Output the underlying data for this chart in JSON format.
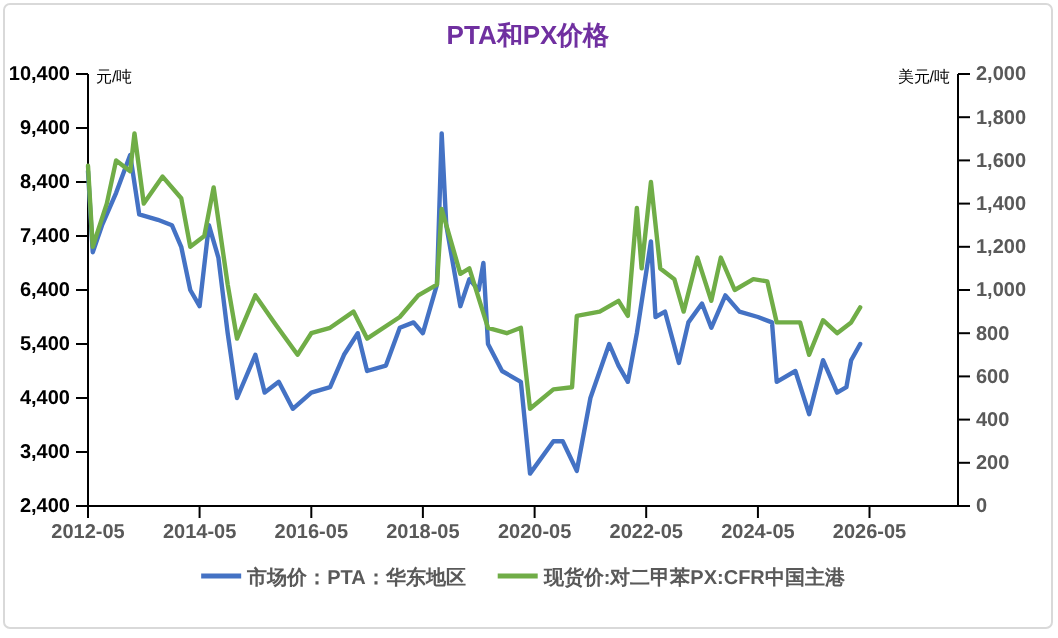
{
  "chart_data": {
    "type": "line",
    "title": "PTA和PX价格",
    "ylabel": "元/吨",
    "y2label": "美元/吨",
    "xlim": [
      "2012-05",
      "2027-12"
    ],
    "xticks": [
      "2012-05",
      "2014-05",
      "2016-05",
      "2018-05",
      "2020-05",
      "2022-05",
      "2024-05",
      "2026-05"
    ],
    "ylim": [
      2400,
      10400
    ],
    "yticks": [
      {
        "value": 2400,
        "label": "2,400"
      },
      {
        "value": 3400,
        "label": "3,400"
      },
      {
        "value": 4400,
        "label": "4,400"
      },
      {
        "value": 5400,
        "label": "5,400"
      },
      {
        "value": 6400,
        "label": "6,400"
      },
      {
        "value": 7400,
        "label": "7,400"
      },
      {
        "value": 8400,
        "label": "8,400"
      },
      {
        "value": 9400,
        "label": "9,400"
      },
      {
        "value": 10400,
        "label": "10,400"
      }
    ],
    "y2lim": [
      0,
      2000
    ],
    "y2ticks": [
      0,
      200,
      400,
      600,
      800,
      {
        "value": 1000,
        "label": "1,000"
      },
      {
        "value": 1200,
        "label": "1,200"
      },
      {
        "value": 1400,
        "label": "1,400"
      },
      {
        "value": 1600,
        "label": "1,600"
      },
      {
        "value": 1800,
        "label": "1,800"
      },
      {
        "value": 2000,
        "label": "2,000"
      }
    ],
    "grid": false,
    "legend": "bottom",
    "line_style": "solid",
    "marker": "none",
    "series": [
      {
        "name": "市场价：PTA：华东地区",
        "color": "#4472c4",
        "x": [
          "2012-05",
          "2012-06",
          "2012-08",
          "2012-11",
          "2013-02",
          "2013-04",
          "2013-08",
          "2013-11",
          "2014-01",
          "2014-03",
          "2014-05",
          "2014-07",
          "2014-09",
          "2014-11",
          "2015-01",
          "2015-05",
          "2015-07",
          "2015-10",
          "2016-01",
          "2016-05",
          "2016-09",
          "2016-12",
          "2017-03",
          "2017-05",
          "2017-09",
          "2017-12",
          "2018-03",
          "2018-05",
          "2018-08",
          "2018-09",
          "2018-10",
          "2019-01",
          "2019-03",
          "2019-05",
          "2019-06",
          "2019-07",
          "2019-10",
          "2020-02",
          "2020-04",
          "2020-09",
          "2020-11",
          "2021-02",
          "2021-05",
          "2021-09",
          "2021-11",
          "2022-01",
          "2022-03",
          "2022-06",
          "2022-07",
          "2022-09",
          "2022-12",
          "2023-02",
          "2023-05",
          "2023-07",
          "2023-10",
          "2024-01",
          "2024-05",
          "2024-08",
          "2024-09",
          "2025-01",
          "2025-04",
          "2025-07",
          "2025-10",
          "2025-12",
          "2026-01",
          "2026-03"
        ],
        "values": [
          8600,
          7100,
          7600,
          8200,
          8900,
          7800,
          7700,
          7600,
          7200,
          6400,
          6100,
          7600,
          7000,
          5600,
          4400,
          5200,
          4500,
          4700,
          4200,
          4500,
          4600,
          5200,
          5600,
          4900,
          5000,
          5700,
          5800,
          5600,
          6500,
          9300,
          7600,
          6100,
          6600,
          6400,
          6900,
          5400,
          4900,
          4700,
          3000,
          3600,
          3600,
          3050,
          4400,
          5400,
          5000,
          4700,
          5600,
          7300,
          5900,
          6000,
          5050,
          5800,
          6150,
          5700,
          6300,
          6000,
          5900,
          5800,
          4700,
          4900,
          4100,
          5100,
          4500,
          4600,
          5100,
          5400
        ]
      },
      {
        "name": "现货价:对二甲苯PX:CFR中国主港",
        "color": "#70ad47",
        "axis": "y2",
        "x": [
          "2012-05",
          "2012-06",
          "2012-09",
          "2012-11",
          "2013-02",
          "2013-03",
          "2013-05",
          "2013-09",
          "2014-01",
          "2014-03",
          "2014-06",
          "2014-08",
          "2014-11",
          "2015-01",
          "2015-05",
          "2015-09",
          "2016-02",
          "2016-05",
          "2016-09",
          "2017-02",
          "2017-05",
          "2017-12",
          "2018-04",
          "2018-08",
          "2018-09",
          "2019-01",
          "2019-03",
          "2019-07",
          "2019-11",
          "2020-02",
          "2020-04",
          "2020-09",
          "2021-01",
          "2021-02",
          "2021-07",
          "2021-11",
          "2022-01",
          "2022-03",
          "2022-04",
          "2022-06",
          "2022-08",
          "2022-11",
          "2023-01",
          "2023-04",
          "2023-07",
          "2023-09",
          "2023-12",
          "2024-04",
          "2024-07",
          "2024-09",
          "2025-02",
          "2025-04",
          "2025-07",
          "2025-10",
          "2026-01",
          "2026-03"
        ],
        "values": [
          1575,
          1200,
          1400,
          1600,
          1550,
          1725,
          1400,
          1525,
          1425,
          1200,
          1250,
          1475,
          1025,
          775,
          975,
          850,
          700,
          800,
          825,
          900,
          775,
          875,
          975,
          1025,
          1375,
          1075,
          1100,
          825,
          800,
          825,
          450,
          540,
          550,
          880,
          900,
          950,
          880,
          1380,
          1100,
          1500,
          1100,
          1050,
          900,
          1150,
          950,
          1150,
          1000,
          1050,
          1040,
          850,
          850,
          700,
          860,
          800,
          850,
          920
        ]
      }
    ]
  }
}
